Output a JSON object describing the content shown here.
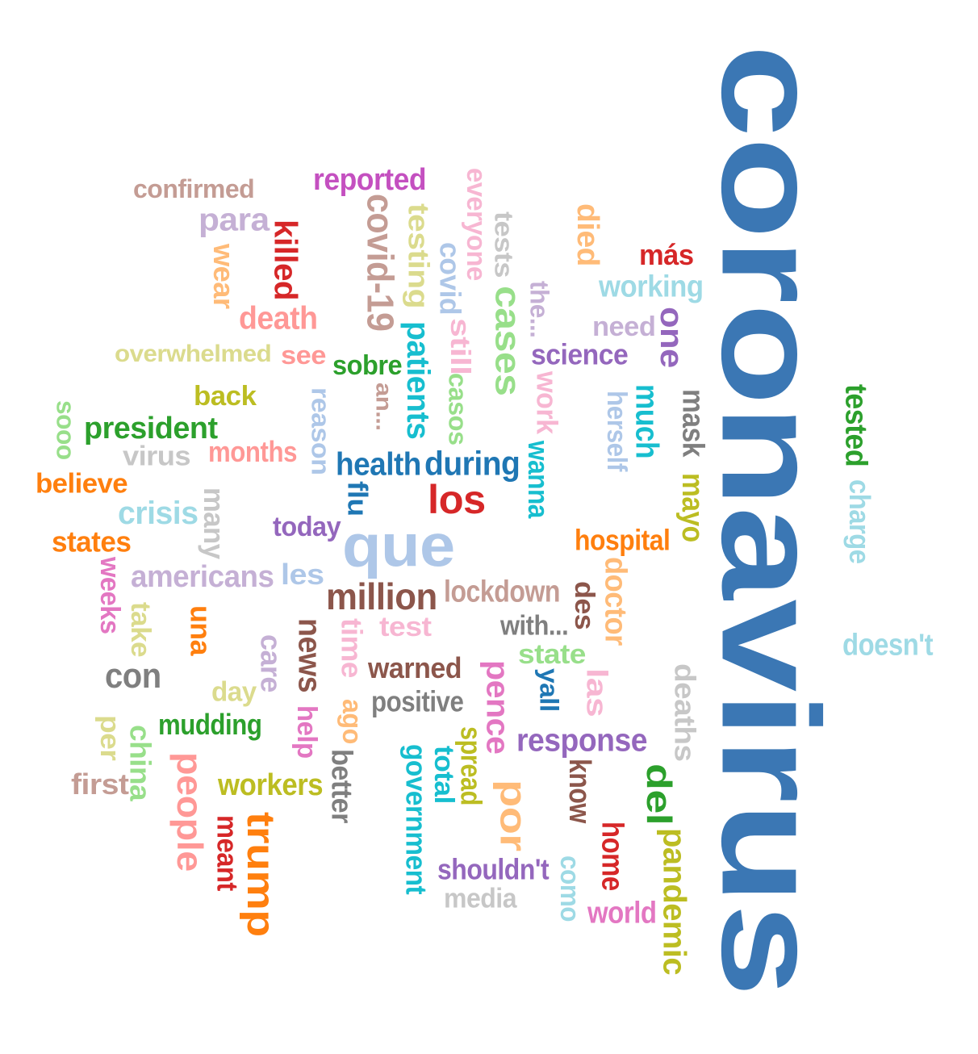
{
  "words": [
    {
      "text": "coronavirus",
      "color": "#3b77b4",
      "orientation": "vertical"
    },
    {
      "text": "confirmed",
      "color": "#c49c94",
      "orientation": "horizontal"
    },
    {
      "text": "reported",
      "color": "#c450c0",
      "orientation": "horizontal"
    },
    {
      "text": "para",
      "color": "#c5b0d5",
      "orientation": "horizontal"
    },
    {
      "text": "killed",
      "color": "#d62728",
      "orientation": "vertical"
    },
    {
      "text": "wear",
      "color": "#ffbb78",
      "orientation": "vertical"
    },
    {
      "text": "covid-19",
      "color": "#c49c94",
      "orientation": "vertical"
    },
    {
      "text": "testing",
      "color": "#dbdb8d",
      "orientation": "vertical"
    },
    {
      "text": "everyone",
      "color": "#f7b6d2",
      "orientation": "vertical"
    },
    {
      "text": "covid",
      "color": "#aec7e8",
      "orientation": "vertical"
    },
    {
      "text": "tests",
      "color": "#c7c7c7",
      "orientation": "vertical"
    },
    {
      "text": "died",
      "color": "#ffbb78",
      "orientation": "vertical"
    },
    {
      "text": "más",
      "color": "#d62728",
      "orientation": "horizontal"
    },
    {
      "text": "working",
      "color": "#9edae5",
      "orientation": "horizontal"
    },
    {
      "text": "death",
      "color": "#ff9896",
      "orientation": "horizontal"
    },
    {
      "text": "the...",
      "color": "#c5b0d5",
      "orientation": "vertical"
    },
    {
      "text": "cases",
      "color": "#98df8a",
      "orientation": "vertical"
    },
    {
      "text": "need",
      "color": "#c5b0d5",
      "orientation": "horizontal"
    },
    {
      "text": "one",
      "color": "#9467bd",
      "orientation": "vertical"
    },
    {
      "text": "overwhelmed",
      "color": "#dbdb8d",
      "orientation": "horizontal"
    },
    {
      "text": "see",
      "color": "#ff9896",
      "orientation": "horizontal"
    },
    {
      "text": "sobre",
      "color": "#2ca02c",
      "orientation": "horizontal"
    },
    {
      "text": "patients",
      "color": "#17becf",
      "orientation": "vertical"
    },
    {
      "text": "still",
      "color": "#f7b6d2",
      "orientation": "vertical"
    },
    {
      "text": "science",
      "color": "#9467bd",
      "orientation": "horizontal"
    },
    {
      "text": "back",
      "color": "#bcbd22",
      "orientation": "horizontal"
    },
    {
      "text": "an...",
      "color": "#c49c94",
      "orientation": "vertical"
    },
    {
      "text": "casos",
      "color": "#98df8a",
      "orientation": "vertical"
    },
    {
      "text": "work",
      "color": "#f7b6d2",
      "orientation": "vertical"
    },
    {
      "text": "herself",
      "color": "#aec7e8",
      "orientation": "vertical"
    },
    {
      "text": "much",
      "color": "#17becf",
      "orientation": "vertical"
    },
    {
      "text": "mask",
      "color": "#7f7f7f",
      "orientation": "vertical"
    },
    {
      "text": "tested",
      "color": "#2ca02c",
      "orientation": "vertical"
    },
    {
      "text": "sooo",
      "color": "#98df8a",
      "orientation": "vertical"
    },
    {
      "text": "president",
      "color": "#2ca02c",
      "orientation": "horizontal"
    },
    {
      "text": "reason",
      "color": "#aec7e8",
      "orientation": "vertical"
    },
    {
      "text": "virus",
      "color": "#c7c7c7",
      "orientation": "horizontal"
    },
    {
      "text": "months",
      "color": "#ff9896",
      "orientation": "horizontal"
    },
    {
      "text": "health",
      "color": "#1f77b4",
      "orientation": "horizontal"
    },
    {
      "text": "during",
      "color": "#1f77b4",
      "orientation": "horizontal"
    },
    {
      "text": "wanna",
      "color": "#17becf",
      "orientation": "vertical"
    },
    {
      "text": "mayo",
      "color": "#bcbd22",
      "orientation": "vertical"
    },
    {
      "text": "charge",
      "color": "#9edae5",
      "orientation": "vertical"
    },
    {
      "text": "believe",
      "color": "#ff7f0e",
      "orientation": "horizontal"
    },
    {
      "text": "flu",
      "color": "#1f77b4",
      "orientation": "vertical"
    },
    {
      "text": "los",
      "color": "#d62728",
      "orientation": "horizontal"
    },
    {
      "text": "crisis",
      "color": "#9edae5",
      "orientation": "horizontal"
    },
    {
      "text": "many",
      "color": "#c7c7c7",
      "orientation": "vertical"
    },
    {
      "text": "today",
      "color": "#9467bd",
      "orientation": "horizontal"
    },
    {
      "text": "que",
      "color": "#aec7e8",
      "orientation": "horizontal"
    },
    {
      "text": "hospital",
      "color": "#ff7f0e",
      "orientation": "horizontal"
    },
    {
      "text": "states",
      "color": "#ff7f0e",
      "orientation": "horizontal"
    },
    {
      "text": "weeks",
      "color": "#e377c2",
      "orientation": "vertical"
    },
    {
      "text": "americans",
      "color": "#c5b0d5",
      "orientation": "horizontal"
    },
    {
      "text": "les",
      "color": "#aec7e8",
      "orientation": "horizontal"
    },
    {
      "text": "million",
      "color": "#8c564b",
      "orientation": "horizontal"
    },
    {
      "text": "lockdown",
      "color": "#c49c94",
      "orientation": "horizontal"
    },
    {
      "text": "des",
      "color": "#8c564b",
      "orientation": "vertical"
    },
    {
      "text": "doctor",
      "color": "#ffbb78",
      "orientation": "vertical"
    },
    {
      "text": "take",
      "color": "#dbdb8d",
      "orientation": "vertical"
    },
    {
      "text": "una",
      "color": "#ff7f0e",
      "orientation": "vertical"
    },
    {
      "text": "news",
      "color": "#8c564b",
      "orientation": "vertical"
    },
    {
      "text": "time",
      "color": "#f7b6d2",
      "orientation": "vertical"
    },
    {
      "text": "test",
      "color": "#f7b6d2",
      "orientation": "horizontal"
    },
    {
      "text": "with...",
      "color": "#7f7f7f",
      "orientation": "horizontal"
    },
    {
      "text": "doesn't",
      "color": "#9edae5",
      "orientation": "horizontal"
    },
    {
      "text": "con",
      "color": "#7f7f7f",
      "orientation": "horizontal"
    },
    {
      "text": "care",
      "color": "#c5b0d5",
      "orientation": "vertical"
    },
    {
      "text": "warned",
      "color": "#8c564b",
      "orientation": "horizontal"
    },
    {
      "text": "pence",
      "color": "#e377c2",
      "orientation": "vertical"
    },
    {
      "text": "state",
      "color": "#98df8a",
      "orientation": "horizontal"
    },
    {
      "text": "yall",
      "color": "#1f77b4",
      "orientation": "vertical"
    },
    {
      "text": "las",
      "color": "#f7b6d2",
      "orientation": "vertical"
    },
    {
      "text": "deaths",
      "color": "#c7c7c7",
      "orientation": "vertical"
    },
    {
      "text": "day",
      "color": "#dbdb8d",
      "orientation": "horizontal"
    },
    {
      "text": "positive",
      "color": "#7f7f7f",
      "orientation": "horizontal"
    },
    {
      "text": "mudding",
      "color": "#2ca02c",
      "orientation": "horizontal"
    },
    {
      "text": "per",
      "color": "#dbdb8d",
      "orientation": "vertical"
    },
    {
      "text": "china",
      "color": "#98df8a",
      "orientation": "vertical"
    },
    {
      "text": "help",
      "color": "#e377c2",
      "orientation": "vertical"
    },
    {
      "text": "ago",
      "color": "#ffbb78",
      "orientation": "vertical"
    },
    {
      "text": "response",
      "color": "#9467bd",
      "orientation": "horizontal"
    },
    {
      "text": "first",
      "color": "#c49c94",
      "orientation": "horizontal"
    },
    {
      "text": "people",
      "color": "#ff9896",
      "orientation": "vertical"
    },
    {
      "text": "workers",
      "color": "#bcbd22",
      "orientation": "horizontal"
    },
    {
      "text": "better",
      "color": "#7f7f7f",
      "orientation": "vertical"
    },
    {
      "text": "total",
      "color": "#17becf",
      "orientation": "vertical"
    },
    {
      "text": "government",
      "color": "#17becf",
      "orientation": "vertical"
    },
    {
      "text": "spread",
      "color": "#bcbd22",
      "orientation": "vertical"
    },
    {
      "text": "por",
      "color": "#ffbb78",
      "orientation": "vertical"
    },
    {
      "text": "know",
      "color": "#8c564b",
      "orientation": "vertical"
    },
    {
      "text": "del",
      "color": "#2ca02c",
      "orientation": "vertical"
    },
    {
      "text": "meant",
      "color": "#d62728",
      "orientation": "vertical"
    },
    {
      "text": "trump",
      "color": "#ff7f0e",
      "orientation": "vertical"
    },
    {
      "text": "home",
      "color": "#d62728",
      "orientation": "vertical"
    },
    {
      "text": "pandemic",
      "color": "#bcbd22",
      "orientation": "vertical"
    },
    {
      "text": "shouldn't",
      "color": "#9467bd",
      "orientation": "horizontal"
    },
    {
      "text": "como",
      "color": "#9edae5",
      "orientation": "vertical"
    },
    {
      "text": "media",
      "color": "#c7c7c7",
      "orientation": "horizontal"
    },
    {
      "text": "world",
      "color": "#e377c2",
      "orientation": "horizontal"
    }
  ]
}
